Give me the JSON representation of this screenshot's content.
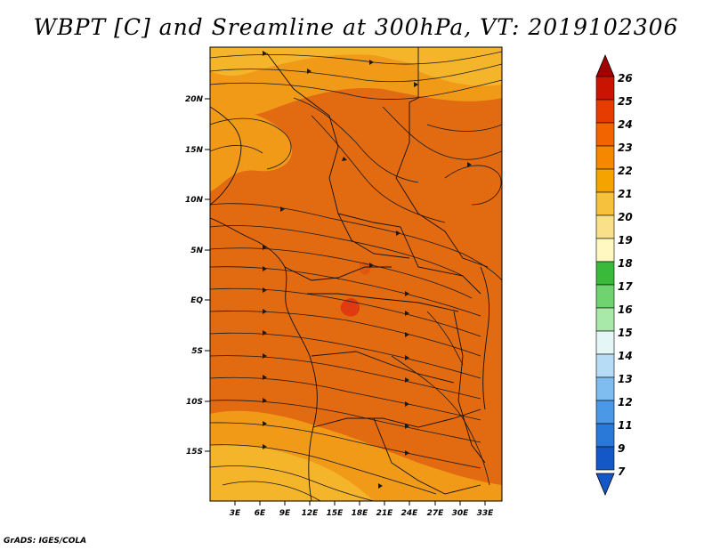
{
  "title": "WBPT [C] and Sreamline at 300hPa, VT: 2019102306",
  "credit": "GrADS: IGES/COLA",
  "lat_labels": [
    "20N",
    "15N",
    "10N",
    "5N",
    "EQ",
    "5S",
    "10S",
    "15S"
  ],
  "lon_labels": [
    "3E",
    "6E",
    "9E",
    "12E",
    "15E",
    "18E",
    "21E",
    "24E",
    "27E",
    "30E",
    "33E"
  ],
  "colorbar": {
    "levels": [
      "26",
      "25",
      "24",
      "23",
      "22",
      "21",
      "20",
      "19",
      "18",
      "17",
      "16",
      "15",
      "14",
      "13",
      "12",
      "11",
      "9",
      "7"
    ],
    "colors": [
      "#a00000",
      "#c81400",
      "#e63c00",
      "#f26400",
      "#f58800",
      "#f5a300",
      "#f6c23e",
      "#fbe08a",
      "#fff8c0",
      "#3aba3a",
      "#6fd46f",
      "#a8e8a8",
      "#e4f6f6",
      "#b6dcf6",
      "#7fbcf0",
      "#4a98e6",
      "#2a78d8",
      "#1458c8"
    ]
  },
  "map_colors": {
    "orange_main": "#e26a10",
    "orange_light": "#f09a18",
    "orange_pale": "#f5b52a",
    "red_spot": "#e03a10"
  }
}
